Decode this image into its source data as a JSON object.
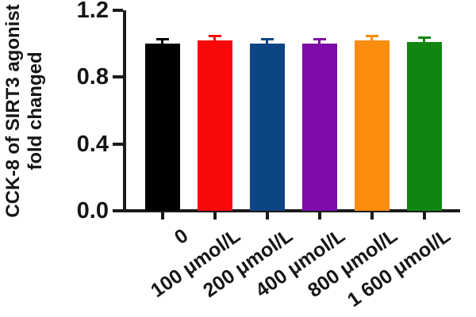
{
  "figure": {
    "background": "#ffffff",
    "axis_color": "#1b1b1b",
    "text_color": "#161616"
  },
  "chart_data": {
    "type": "bar",
    "title": "",
    "xlabel": "",
    "ylabel_lines": [
      "CCK-8 of SIRT3 agonist",
      "fold changed"
    ],
    "categories": [
      "0",
      "100 μmol/L",
      "200 μmol/L",
      "400 μmol/L",
      "800 μmol/L",
      "1 600 μmol/L"
    ],
    "values": [
      1.0,
      1.02,
      1.0,
      1.0,
      1.02,
      1.01
    ],
    "errors": [
      0.02,
      0.02,
      0.02,
      0.02,
      0.02,
      0.02
    ],
    "bar_colors": [
      "#000000",
      "#f90808",
      "#0d4484",
      "#7d0ca8",
      "#fa8c0e",
      "#108610"
    ],
    "yticks": [
      0.0,
      0.4,
      0.8,
      1.2
    ],
    "ytick_labels": [
      "0.0",
      "0.4",
      "0.8",
      "1.2"
    ],
    "ylim": [
      0.0,
      1.2
    ],
    "grid": false,
    "legend": "none"
  }
}
